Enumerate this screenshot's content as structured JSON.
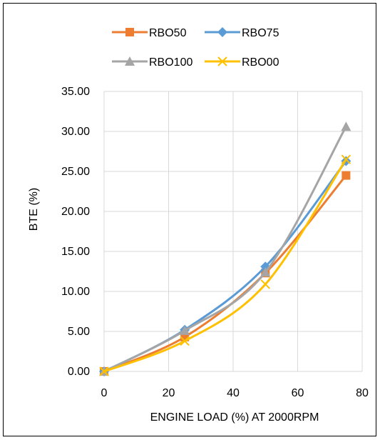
{
  "chart_data": {
    "type": "line",
    "title": "",
    "xlabel": "ENGINE LOAD (%) AT 2000RPM",
    "ylabel": "BTE (%)",
    "xlim": [
      0,
      80
    ],
    "ylim": [
      0,
      35
    ],
    "x_ticks": [
      0,
      20,
      40,
      60,
      80
    ],
    "x_tick_labels": [
      "0",
      "20",
      "40",
      "60",
      "80"
    ],
    "y_ticks": [
      0,
      5,
      10,
      15,
      20,
      25,
      30,
      35
    ],
    "y_tick_labels": [
      "0.00",
      "5.00",
      "10.00",
      "15.00",
      "20.00",
      "25.00",
      "30.00",
      "35.00"
    ],
    "grid": true,
    "legend_position": "top",
    "x": [
      0,
      25,
      50,
      75
    ],
    "series": [
      {
        "name": "RBO50",
        "values": [
          0,
          4.3,
          12.3,
          24.5
        ],
        "color": "#ED7D31",
        "marker": "square"
      },
      {
        "name": "RBO75",
        "values": [
          0,
          5.2,
          13.1,
          26.3
        ],
        "color": "#5B9BD5",
        "marker": "diamond"
      },
      {
        "name": "RBO100",
        "values": [
          0,
          5.1,
          12.4,
          30.6
        ],
        "color": "#A5A5A5",
        "marker": "triangle"
      },
      {
        "name": "RBO00",
        "values": [
          0,
          3.8,
          10.9,
          26.5
        ],
        "color": "#FFC000",
        "marker": "x"
      }
    ]
  }
}
